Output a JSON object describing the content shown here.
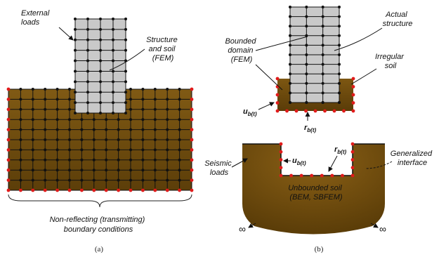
{
  "panel_a": {
    "caption": "(a)",
    "external_loads": [
      "External",
      "loads"
    ],
    "structure_soil": [
      "Structure",
      "and soil",
      "(FEM)"
    ],
    "boundary": [
      "Non-reflecting (transmitting)",
      "boundary conditions"
    ]
  },
  "panel_b": {
    "caption": "(b)",
    "actual_structure": [
      "Actual",
      "structure"
    ],
    "bounded_domain": [
      "Bounded",
      "domain",
      "(FEM)"
    ],
    "irregular_soil": [
      "Irregular",
      "soil"
    ],
    "ub_top": "u",
    "rb_top": "r",
    "seismic_loads": [
      "Seismic",
      "loads"
    ],
    "ub_bottom": "u",
    "rb_bottom": "r",
    "generalized_interface": [
      "Generalized",
      "interface"
    ],
    "unbounded_soil": [
      "Unbounded soil",
      "(BEM, SBFEM)"
    ],
    "subscript": "b(t)",
    "infinity": "∞"
  },
  "colors": {
    "soil_top": "#7a5512",
    "soil_bottom": "#5a3c08",
    "structure": "#c9c9c9",
    "mesh_line": "#111111",
    "interior_node": "#111111",
    "boundary_node": "#e11b1b"
  }
}
